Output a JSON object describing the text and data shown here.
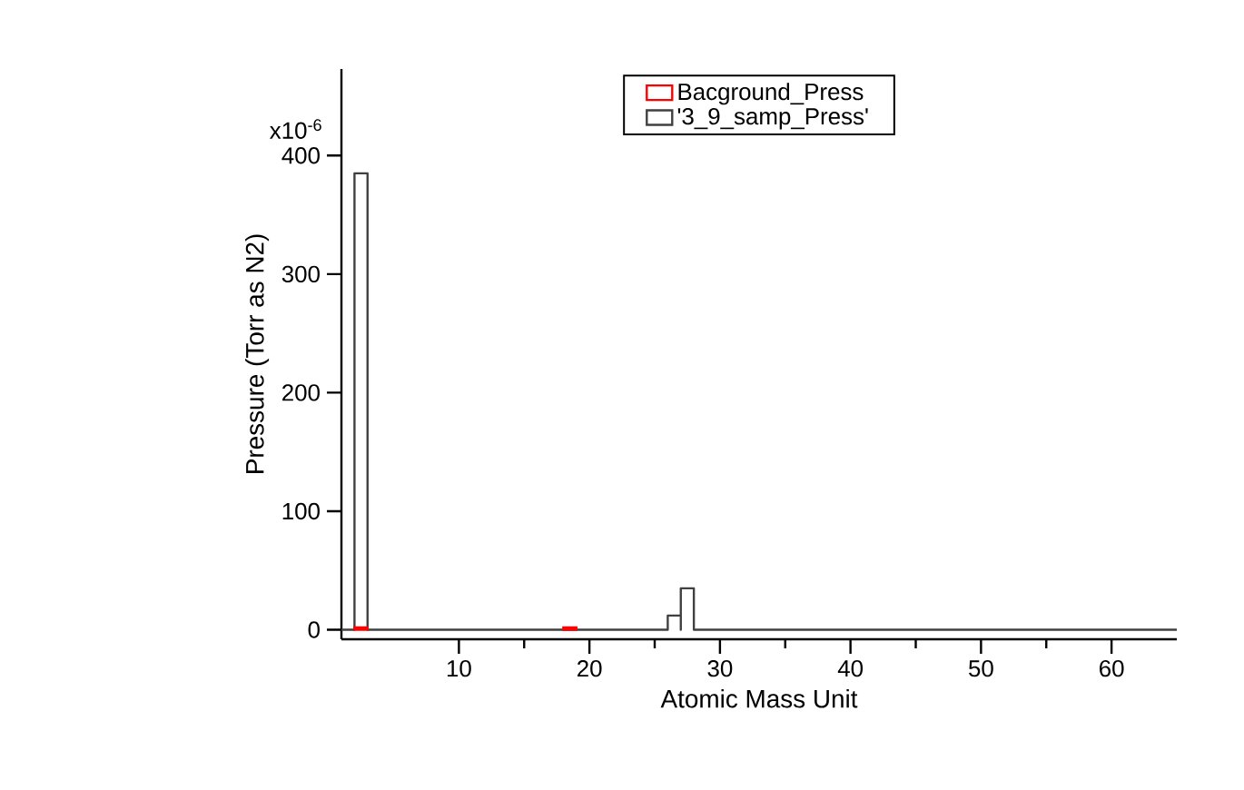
{
  "chart_data": {
    "type": "histogram",
    "xlabel": "Atomic Mass Unit",
    "ylabel": "Pressure (Torr as N2)",
    "bins": [
      1,
      2,
      3,
      4,
      5,
      6,
      7,
      8,
      9,
      10,
      11,
      12,
      13,
      14,
      15,
      16,
      17,
      18,
      19,
      20,
      21,
      22,
      23,
      24,
      25,
      26,
      27,
      28,
      29,
      30,
      31,
      32,
      33,
      34,
      35,
      36,
      37,
      38,
      39,
      40,
      41,
      42,
      43,
      44,
      45,
      46,
      47,
      48,
      49,
      50,
      51,
      52,
      53,
      54,
      55,
      56,
      57,
      58,
      59,
      60,
      61,
      62,
      63,
      64,
      65
    ],
    "series": [
      {
        "name": "Bacground_Press",
        "color": "#ff0000",
        "values": [
          null,
          2,
          null,
          null,
          null,
          null,
          null,
          null,
          null,
          null,
          null,
          null,
          null,
          null,
          null,
          null,
          null,
          2,
          null,
          null,
          null,
          null,
          null,
          null,
          null,
          null,
          null,
          null,
          null,
          null,
          null,
          null,
          null,
          null,
          null,
          null,
          null,
          null,
          null,
          null,
          null,
          null,
          null,
          null,
          null,
          null,
          null,
          null,
          null,
          null,
          null,
          null,
          null,
          null,
          null,
          null,
          null,
          null,
          null,
          null,
          null,
          null,
          null,
          null
        ]
      },
      {
        "name": "'3_9_samp_Press'",
        "color": "#404040",
        "values": [
          0,
          385,
          0,
          0,
          0,
          0,
          0,
          0,
          0,
          0,
          0,
          0,
          0,
          0,
          0,
          0,
          0,
          0,
          0,
          0,
          0,
          0,
          0,
          0,
          0,
          12,
          35,
          0,
          0,
          0,
          0,
          0,
          0,
          0,
          0,
          0,
          0,
          0,
          0,
          0,
          0,
          0,
          0,
          0,
          0,
          0,
          0,
          0,
          0,
          0,
          0,
          0,
          0,
          0,
          0,
          0,
          0,
          0,
          0,
          0,
          0,
          0,
          0,
          0
        ]
      }
    ],
    "xlim": [
      1,
      65
    ],
    "ylim": [
      -8,
      473
    ],
    "xticks": [
      10,
      20,
      30,
      40,
      50,
      60
    ],
    "yticks": [
      0,
      100,
      200,
      300,
      400
    ],
    "annotations": [
      "x10$^{-6}$"
    ],
    "grid": false,
    "legend": "top"
  }
}
